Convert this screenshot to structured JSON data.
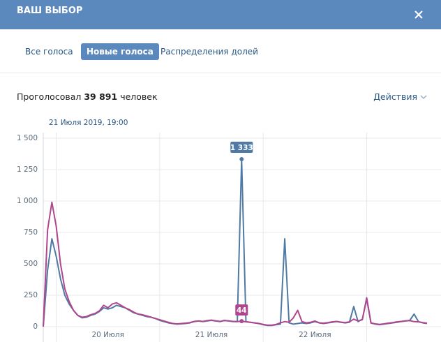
{
  "header": {
    "title": "ВАШ ВЫБОР"
  },
  "tabs": [
    "Все голоса",
    "Новые голоса",
    "Распределения долей"
  ],
  "active_tab": 1,
  "summary": {
    "prefix": "Проголосовал",
    "count": "39 891",
    "suffix": "человек"
  },
  "actions": "Действия",
  "chart_data": {
    "type": "line",
    "x": [
      0,
      1,
      2,
      3,
      4,
      5,
      6,
      7,
      8,
      9,
      10,
      11,
      12,
      13,
      14,
      15,
      16,
      17,
      18,
      19,
      20,
      21,
      22,
      23,
      24,
      25,
      26,
      27,
      28,
      29,
      30,
      31,
      32,
      33,
      34,
      35,
      36,
      37,
      38,
      39,
      40,
      41,
      42,
      43,
      44,
      45,
      46,
      47,
      48,
      49,
      50,
      51,
      52,
      53,
      54,
      55,
      56,
      57,
      58,
      59,
      60,
      61,
      62,
      63,
      64,
      65,
      66,
      67,
      68,
      69,
      70,
      71,
      72,
      73,
      74,
      75,
      76,
      77,
      78,
      79,
      80,
      81,
      82,
      83,
      84,
      85,
      86,
      87,
      88,
      89
    ],
    "series": [
      {
        "color": "#4f7aa6",
        "values": [
          0,
          450,
          700,
          560,
          380,
          250,
          180,
          130,
          90,
          70,
          75,
          90,
          100,
          120,
          150,
          140,
          150,
          170,
          160,
          150,
          130,
          110,
          100,
          90,
          80,
          75,
          65,
          50,
          40,
          30,
          25,
          20,
          22,
          25,
          30,
          40,
          45,
          40,
          45,
          50,
          45,
          40,
          50,
          45,
          40,
          40,
          1333,
          40,
          35,
          30,
          25,
          15,
          10,
          10,
          15,
          20,
          700,
          30,
          20,
          25,
          30,
          25,
          30,
          40,
          30,
          25,
          30,
          35,
          40,
          35,
          30,
          35,
          160,
          40,
          60,
          220,
          30,
          20,
          15,
          20,
          25,
          30,
          35,
          40,
          45,
          50,
          100,
          40,
          30,
          25
        ]
      },
      {
        "color": "#b0468e",
        "values": [
          0,
          770,
          990,
          800,
          500,
          300,
          200,
          130,
          90,
          75,
          80,
          95,
          105,
          125,
          170,
          150,
          180,
          190,
          170,
          150,
          135,
          115,
          100,
          95,
          85,
          75,
          65,
          55,
          45,
          35,
          25,
          22,
          25,
          28,
          32,
          42,
          45,
          42,
          48,
          52,
          46,
          42,
          48,
          46,
          42,
          40,
          44,
          38,
          35,
          30,
          25,
          18,
          12,
          12,
          18,
          30,
          40,
          35,
          70,
          130,
          40,
          30,
          35,
          45,
          30,
          28,
          32,
          38,
          42,
          36,
          32,
          38,
          60,
          45,
          55,
          230,
          28,
          22,
          18,
          22,
          28,
          32,
          38,
          42,
          46,
          48,
          40,
          38,
          32,
          28
        ]
      }
    ],
    "xlim": [
      0,
      89
    ],
    "xticks": [
      {
        "value": 15,
        "label": "20 Июля"
      },
      {
        "value": 39,
        "label": "21 Июля"
      },
      {
        "value": 63,
        "label": "22 Июля"
      }
    ],
    "xgrid": [
      3,
      27,
      51,
      75
    ],
    "ylim": [
      0,
      1500
    ],
    "yticks": [
      0,
      250,
      500,
      750,
      {
        "value": 1000,
        "label": "1 000"
      },
      {
        "value": 1250,
        "label": "1 250"
      },
      {
        "value": 1500,
        "label": "1 500"
      }
    ],
    "grid": true,
    "hover": {
      "x_label": "21 Июля 2019, 19:00",
      "index": 46,
      "labels": [
        "1 333",
        "44"
      ]
    }
  }
}
